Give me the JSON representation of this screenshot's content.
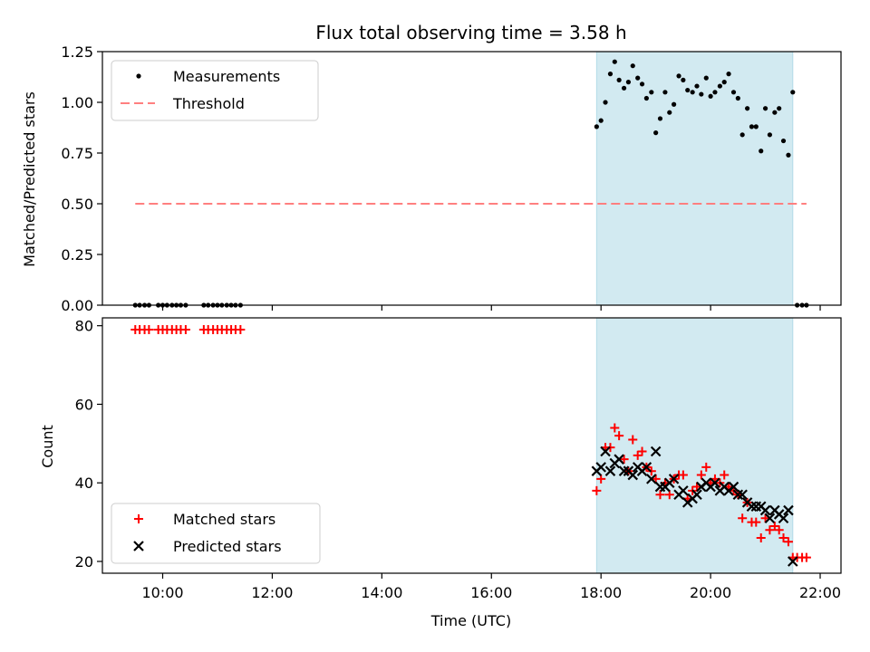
{
  "chart_data": {
    "type": "scatter",
    "title": "Flux total observing time = 3.58 h",
    "xlabel": "Time (UTC)",
    "x_ticks": [
      "10:00",
      "12:00",
      "14:00",
      "16:00",
      "18:00",
      "20:00",
      "22:00"
    ],
    "x_tick_hours": [
      10,
      12,
      14,
      16,
      18,
      20,
      22
    ],
    "xlim_hours": [
      8.9,
      22.38
    ],
    "observing_window_hours": [
      17.92,
      21.5
    ],
    "colors": {
      "window": "#add8e6",
      "measurements": "#000000",
      "threshold": "#ff7f7f",
      "matched": "#ff0000",
      "predicted": "#000000"
    },
    "panels": [
      {
        "name": "ratio",
        "ylabel": "Matched/Predicted stars",
        "ylim": [
          0,
          1.25
        ],
        "y_ticks": [
          "0.00",
          "0.25",
          "0.50",
          "0.75",
          "1.00",
          "1.25"
        ],
        "y_tick_values": [
          0,
          0.25,
          0.5,
          0.75,
          1.0,
          1.25
        ],
        "legend": {
          "placement": "upper-left",
          "entries": [
            "Measurements",
            "Threshold"
          ]
        },
        "threshold": {
          "name": "Threshold",
          "y": 0.5,
          "x_range_hours": [
            9.5,
            21.75
          ]
        },
        "measurements": {
          "name": "Measurements",
          "x_hours": [
            9.5,
            9.58,
            9.67,
            9.75,
            9.92,
            10.0,
            10.08,
            10.17,
            10.25,
            10.33,
            10.42,
            10.75,
            10.83,
            10.92,
            11.0,
            11.08,
            11.17,
            11.25,
            11.33,
            11.42,
            17.92,
            18.0,
            18.08,
            18.17,
            18.25,
            18.33,
            18.42,
            18.5,
            18.58,
            18.67,
            18.75,
            18.83,
            18.92,
            19.0,
            19.08,
            19.17,
            19.25,
            19.33,
            19.42,
            19.5,
            19.58,
            19.67,
            19.75,
            19.83,
            19.92,
            20.0,
            20.08,
            20.17,
            20.25,
            20.33,
            20.42,
            20.5,
            20.58,
            20.67,
            20.75,
            20.83,
            20.92,
            21.0,
            21.08,
            21.17,
            21.25,
            21.33,
            21.42,
            21.5,
            21.58,
            21.67,
            21.75
          ],
          "y": [
            0,
            0,
            0,
            0,
            0,
            0,
            0,
            0,
            0,
            0,
            0,
            0,
            0,
            0,
            0,
            0,
            0,
            0,
            0,
            0,
            0.88,
            0.91,
            1.0,
            1.14,
            1.2,
            1.11,
            1.07,
            1.1,
            1.18,
            1.12,
            1.09,
            1.02,
            1.05,
            0.85,
            0.92,
            1.05,
            0.95,
            0.99,
            1.13,
            1.11,
            1.06,
            1.05,
            1.08,
            1.04,
            1.12,
            1.03,
            1.05,
            1.08,
            1.1,
            1.14,
            1.05,
            1.02,
            0.84,
            0.97,
            0.88,
            0.88,
            0.76,
            0.97,
            0.84,
            0.95,
            0.97,
            0.81,
            0.74,
            1.05,
            0,
            0,
            0
          ]
        }
      },
      {
        "name": "count",
        "ylabel": "Count",
        "ylim": [
          17,
          82
        ],
        "y_ticks": [
          "20",
          "40",
          "60",
          "80"
        ],
        "y_tick_values": [
          20,
          40,
          60,
          80
        ],
        "legend": {
          "placement": "lower-left",
          "entries": [
            "Matched stars",
            "Predicted stars"
          ]
        },
        "series": [
          {
            "name": "Matched stars",
            "marker": "plus",
            "x_hours": [
              9.5,
              9.58,
              9.67,
              9.75,
              9.92,
              10.0,
              10.08,
              10.17,
              10.25,
              10.33,
              10.42,
              10.75,
              10.83,
              10.92,
              11.0,
              11.08,
              11.17,
              11.25,
              11.33,
              11.42,
              17.92,
              18.0,
              18.08,
              18.17,
              18.25,
              18.33,
              18.42,
              18.5,
              18.58,
              18.67,
              18.75,
              18.83,
              18.92,
              19.0,
              19.08,
              19.17,
              19.25,
              19.33,
              19.42,
              19.5,
              19.58,
              19.67,
              19.75,
              19.83,
              19.92,
              20.0,
              20.08,
              20.17,
              20.25,
              20.33,
              20.42,
              20.5,
              20.58,
              20.67,
              20.75,
              20.83,
              20.92,
              21.0,
              21.08,
              21.17,
              21.25,
              21.33,
              21.42,
              21.5,
              21.58,
              21.67,
              21.75
            ],
            "y": [
              79,
              79,
              79,
              79,
              79,
              79,
              79,
              79,
              79,
              79,
              79,
              79,
              79,
              79,
              79,
              79,
              79,
              79,
              79,
              79,
              38,
              41,
              49,
              49,
              54,
              52,
              46,
              43,
              51,
              47,
              48,
              44,
              43,
              41,
              37,
              40,
              37,
              41,
              42,
              42,
              36,
              38,
              39,
              42,
              44,
              40,
              41,
              40,
              42,
              39,
              38,
              37,
              31,
              35,
              30,
              30,
              26,
              31,
              28,
              29,
              28,
              26,
              25,
              21,
              21,
              21,
              21
            ]
          },
          {
            "name": "Predicted stars",
            "marker": "x",
            "x_hours": [
              17.92,
              18.0,
              18.08,
              18.17,
              18.25,
              18.33,
              18.42,
              18.5,
              18.58,
              18.67,
              18.75,
              18.83,
              18.92,
              19.0,
              19.08,
              19.17,
              19.25,
              19.33,
              19.42,
              19.5,
              19.58,
              19.67,
              19.75,
              19.83,
              19.92,
              20.0,
              20.08,
              20.17,
              20.25,
              20.33,
              20.42,
              20.5,
              20.58,
              20.67,
              20.75,
              20.83,
              20.92,
              21.0,
              21.08,
              21.17,
              21.25,
              21.33,
              21.42,
              21.5
            ],
            "y": [
              43,
              44,
              48,
              43,
              45,
              46,
              43,
              43,
              42,
              44,
              43,
              44,
              41,
              48,
              39,
              39,
              40,
              41,
              37,
              38,
              35,
              36,
              37,
              39,
              40,
              39,
              40,
              38,
              39,
              38,
              39,
              37,
              37,
              35,
              34,
              34,
              34,
              33,
              31,
              33,
              32,
              31,
              33,
              20
            ]
          }
        ]
      }
    ]
  }
}
